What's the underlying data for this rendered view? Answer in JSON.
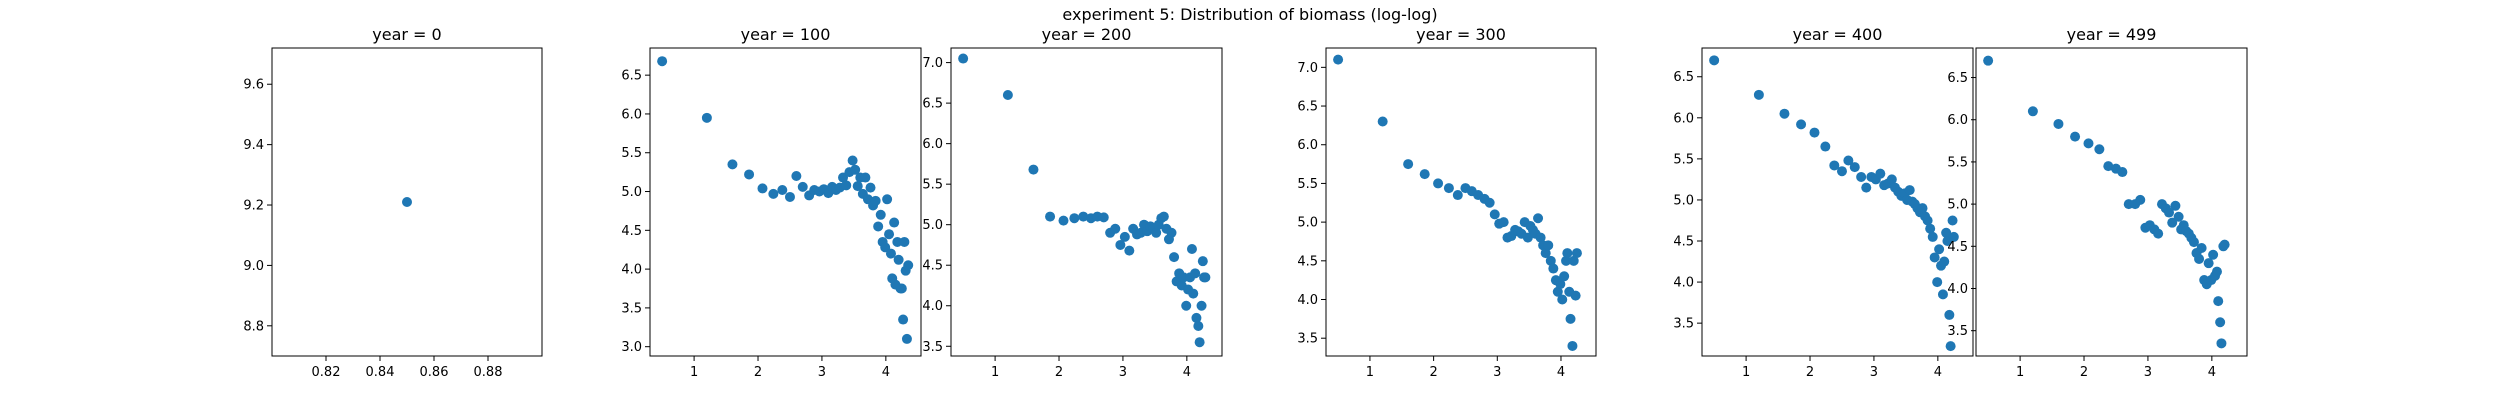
{
  "figure": {
    "title": "experiment 5: Distribution of biomass (log-log)",
    "point_color": "#1f77b4"
  },
  "chart_data": [
    {
      "type": "scatter",
      "title": "year = 0",
      "xlim": [
        0.8,
        0.9
      ],
      "ylim": [
        8.7,
        9.72
      ],
      "xticks": [
        0.82,
        0.84,
        0.86,
        0.88
      ],
      "xtick_labels": [
        "0.82",
        "0.84",
        "0.86",
        "0.88"
      ],
      "yticks": [
        8.8,
        9.0,
        9.2,
        9.4,
        9.6
      ],
      "ytick_labels": [
        "8.8",
        "9.0",
        "9.2",
        "9.4",
        "9.6"
      ],
      "points": [
        [
          0.85,
          9.21
        ]
      ]
    },
    {
      "type": "scatter",
      "title": "year = 100",
      "xlim": [
        0.31,
        4.55
      ],
      "ylim": [
        2.88,
        6.85
      ],
      "xticks": [
        1,
        2,
        3,
        4
      ],
      "xtick_labels": [
        "1",
        "2",
        "3",
        "4"
      ],
      "yticks": [
        3.0,
        3.5,
        4.0,
        4.5,
        5.0,
        5.5,
        6.0,
        6.5
      ],
      "ytick_labels": [
        "3.0",
        "3.5",
        "4.0",
        "4.5",
        "5.0",
        "5.5",
        "6.0",
        "6.5"
      ],
      "points": [
        [
          0.5,
          6.68
        ],
        [
          1.2,
          5.95
        ],
        [
          1.6,
          5.35
        ],
        [
          1.86,
          5.22
        ],
        [
          2.07,
          5.04
        ],
        [
          2.24,
          4.97
        ],
        [
          2.38,
          5.02
        ],
        [
          2.5,
          4.93
        ],
        [
          2.6,
          5.2
        ],
        [
          2.7,
          5.06
        ],
        [
          2.8,
          4.95
        ],
        [
          2.88,
          5.02
        ],
        [
          2.96,
          5.0
        ],
        [
          3.03,
          5.03
        ],
        [
          3.1,
          4.98
        ],
        [
          3.16,
          5.06
        ],
        [
          3.22,
          5.02
        ],
        [
          3.28,
          5.05
        ],
        [
          3.33,
          5.18
        ],
        [
          3.38,
          5.08
        ],
        [
          3.43,
          5.25
        ],
        [
          3.48,
          5.4
        ],
        [
          3.52,
          5.28
        ],
        [
          3.56,
          5.07
        ],
        [
          3.6,
          5.18
        ],
        [
          3.64,
          4.97
        ],
        [
          3.68,
          5.18
        ],
        [
          3.72,
          4.9
        ],
        [
          3.76,
          5.05
        ],
        [
          3.8,
          4.82
        ],
        [
          3.84,
          4.88
        ],
        [
          3.88,
          4.55
        ],
        [
          3.92,
          4.7
        ],
        [
          3.95,
          4.35
        ],
        [
          3.99,
          4.28
        ],
        [
          4.02,
          4.9
        ],
        [
          4.05,
          4.45
        ],
        [
          4.08,
          4.2
        ],
        [
          4.1,
          3.88
        ],
        [
          4.13,
          4.6
        ],
        [
          4.15,
          3.8
        ],
        [
          4.18,
          4.35
        ],
        [
          4.2,
          4.12
        ],
        [
          4.23,
          3.75
        ],
        [
          4.25,
          3.75
        ],
        [
          4.27,
          3.35
        ],
        [
          4.29,
          4.35
        ],
        [
          4.31,
          3.98
        ],
        [
          4.33,
          3.1
        ],
        [
          4.35,
          4.05
        ]
      ]
    },
    {
      "type": "scatter",
      "title": "year = 200",
      "xlim": [
        0.31,
        4.55
      ],
      "ylim": [
        3.38,
        7.18
      ],
      "xticks": [
        1,
        2,
        3,
        4
      ],
      "xtick_labels": [
        "1",
        "2",
        "3",
        "4"
      ],
      "yticks": [
        3.5,
        4.0,
        4.5,
        5.0,
        5.5,
        6.0,
        6.5,
        7.0
      ],
      "ytick_labels": [
        "3.5",
        "4.0",
        "4.5",
        "5.0",
        "5.5",
        "6.0",
        "6.5",
        "7.0"
      ],
      "points": [
        [
          0.5,
          7.05
        ],
        [
          1.2,
          6.6
        ],
        [
          1.6,
          5.68
        ],
        [
          1.86,
          5.1
        ],
        [
          2.07,
          5.05
        ],
        [
          2.24,
          5.08
        ],
        [
          2.38,
          5.1
        ],
        [
          2.5,
          5.08
        ],
        [
          2.6,
          5.1
        ],
        [
          2.7,
          5.09
        ],
        [
          2.8,
          4.9
        ],
        [
          2.88,
          4.95
        ],
        [
          2.96,
          4.75
        ],
        [
          3.03,
          4.85
        ],
        [
          3.1,
          4.68
        ],
        [
          3.16,
          4.95
        ],
        [
          3.22,
          4.88
        ],
        [
          3.28,
          4.9
        ],
        [
          3.33,
          5.0
        ],
        [
          3.38,
          4.92
        ],
        [
          3.43,
          4.98
        ],
        [
          3.48,
          4.95
        ],
        [
          3.52,
          4.9
        ],
        [
          3.56,
          5.0
        ],
        [
          3.6,
          5.08
        ],
        [
          3.64,
          5.1
        ],
        [
          3.68,
          4.95
        ],
        [
          3.72,
          4.82
        ],
        [
          3.76,
          4.9
        ],
        [
          3.8,
          4.6
        ],
        [
          3.84,
          4.3
        ],
        [
          3.88,
          4.4
        ],
        [
          3.92,
          4.25
        ],
        [
          3.95,
          4.35
        ],
        [
          3.99,
          4.0
        ],
        [
          4.02,
          4.2
        ],
        [
          4.05,
          4.35
        ],
        [
          4.08,
          4.7
        ],
        [
          4.1,
          4.15
        ],
        [
          4.13,
          4.4
        ],
        [
          4.15,
          3.85
        ],
        [
          4.18,
          3.75
        ],
        [
          4.2,
          3.55
        ],
        [
          4.23,
          4.0
        ],
        [
          4.25,
          4.55
        ],
        [
          4.27,
          4.35
        ],
        [
          4.29,
          4.35
        ]
      ]
    },
    {
      "type": "scatter",
      "title": "year = 300",
      "xlim": [
        0.31,
        4.55
      ],
      "ylim": [
        3.27,
        7.25
      ],
      "xticks": [
        1,
        2,
        3,
        4
      ],
      "xtick_labels": [
        "1",
        "2",
        "3",
        "4"
      ],
      "yticks": [
        3.5,
        4.0,
        4.5,
        5.0,
        5.5,
        6.0,
        6.5,
        7.0
      ],
      "ytick_labels": [
        "3.5",
        "4.0",
        "4.5",
        "5.0",
        "5.5",
        "6.0",
        "6.5",
        "7.0"
      ],
      "points": [
        [
          0.5,
          7.1
        ],
        [
          1.2,
          6.3
        ],
        [
          1.6,
          5.75
        ],
        [
          1.86,
          5.62
        ],
        [
          2.07,
          5.5
        ],
        [
          2.24,
          5.44
        ],
        [
          2.38,
          5.35
        ],
        [
          2.5,
          5.44
        ],
        [
          2.6,
          5.4
        ],
        [
          2.7,
          5.35
        ],
        [
          2.8,
          5.3
        ],
        [
          2.88,
          5.25
        ],
        [
          2.96,
          5.1
        ],
        [
          3.03,
          4.98
        ],
        [
          3.1,
          5.0
        ],
        [
          3.16,
          4.8
        ],
        [
          3.22,
          4.82
        ],
        [
          3.28,
          4.9
        ],
        [
          3.33,
          4.88
        ],
        [
          3.38,
          4.85
        ],
        [
          3.43,
          5.0
        ],
        [
          3.48,
          4.8
        ],
        [
          3.52,
          4.95
        ],
        [
          3.56,
          4.9
        ],
        [
          3.6,
          4.85
        ],
        [
          3.64,
          5.05
        ],
        [
          3.68,
          4.8
        ],
        [
          3.72,
          4.7
        ],
        [
          3.76,
          4.6
        ],
        [
          3.8,
          4.7
        ],
        [
          3.84,
          4.5
        ],
        [
          3.88,
          4.4
        ],
        [
          3.92,
          4.25
        ],
        [
          3.95,
          4.1
        ],
        [
          3.99,
          4.2
        ],
        [
          4.02,
          4.0
        ],
        [
          4.05,
          4.3
        ],
        [
          4.08,
          4.5
        ],
        [
          4.1,
          4.6
        ],
        [
          4.13,
          4.1
        ],
        [
          4.15,
          3.75
        ],
        [
          4.18,
          3.4
        ],
        [
          4.2,
          4.5
        ],
        [
          4.23,
          4.05
        ],
        [
          4.25,
          4.6
        ]
      ]
    },
    {
      "type": "scatter",
      "title": "year = 400",
      "xlim": [
        0.31,
        4.55
      ],
      "ylim": [
        3.1,
        6.85
      ],
      "xticks": [
        1,
        2,
        3,
        4
      ],
      "xtick_labels": [
        "1",
        "2",
        "3",
        "4"
      ],
      "yticks": [
        3.5,
        4.0,
        4.5,
        5.0,
        5.5,
        6.0,
        6.5
      ],
      "ytick_labels": [
        "3.5",
        "4.0",
        "4.5",
        "5.0",
        "5.5",
        "6.0",
        "6.5"
      ],
      "points": [
        [
          0.5,
          6.7
        ],
        [
          1.2,
          6.28
        ],
        [
          1.6,
          6.05
        ],
        [
          1.86,
          5.92
        ],
        [
          2.07,
          5.82
        ],
        [
          2.24,
          5.65
        ],
        [
          2.38,
          5.42
        ],
        [
          2.5,
          5.35
        ],
        [
          2.6,
          5.48
        ],
        [
          2.7,
          5.4
        ],
        [
          2.8,
          5.28
        ],
        [
          2.88,
          5.15
        ],
        [
          2.96,
          5.28
        ],
        [
          3.03,
          5.25
        ],
        [
          3.1,
          5.32
        ],
        [
          3.16,
          5.18
        ],
        [
          3.22,
          5.2
        ],
        [
          3.28,
          5.25
        ],
        [
          3.33,
          5.15
        ],
        [
          3.38,
          5.1
        ],
        [
          3.43,
          5.05
        ],
        [
          3.48,
          5.08
        ],
        [
          3.52,
          5.0
        ],
        [
          3.56,
          5.12
        ],
        [
          3.6,
          4.98
        ],
        [
          3.64,
          4.95
        ],
        [
          3.68,
          4.9
        ],
        [
          3.72,
          4.85
        ],
        [
          3.76,
          4.9
        ],
        [
          3.8,
          4.8
        ],
        [
          3.84,
          4.75
        ],
        [
          3.88,
          4.65
        ],
        [
          3.92,
          4.55
        ],
        [
          3.95,
          4.3
        ],
        [
          3.99,
          4.0
        ],
        [
          4.02,
          4.4
        ],
        [
          4.05,
          4.2
        ],
        [
          4.08,
          3.85
        ],
        [
          4.1,
          4.25
        ],
        [
          4.13,
          4.6
        ],
        [
          4.15,
          4.5
        ],
        [
          4.18,
          3.6
        ],
        [
          4.2,
          3.22
        ],
        [
          4.23,
          4.75
        ],
        [
          4.25,
          4.55
        ]
      ]
    },
    {
      "type": "scatter",
      "title": "year = 499",
      "xlim": [
        0.31,
        4.55
      ],
      "ylim": [
        3.2,
        6.85
      ],
      "xticks": [
        1,
        2,
        3,
        4
      ],
      "xtick_labels": [
        "1",
        "2",
        "3",
        "4"
      ],
      "yticks": [
        3.5,
        4.0,
        4.5,
        5.0,
        5.5,
        6.0,
        6.5
      ],
      "ytick_labels": [
        "3.5",
        "4.0",
        "4.5",
        "5.0",
        "5.5",
        "6.0",
        "6.5"
      ],
      "points": [
        [
          0.5,
          6.7
        ],
        [
          1.2,
          6.1
        ],
        [
          1.6,
          5.95
        ],
        [
          1.86,
          5.8
        ],
        [
          2.07,
          5.72
        ],
        [
          2.24,
          5.65
        ],
        [
          2.38,
          5.45
        ],
        [
          2.5,
          5.42
        ],
        [
          2.6,
          5.38
        ],
        [
          2.7,
          5.0
        ],
        [
          2.8,
          5.0
        ],
        [
          2.88,
          5.05
        ],
        [
          2.96,
          4.72
        ],
        [
          3.03,
          4.75
        ],
        [
          3.1,
          4.7
        ],
        [
          3.16,
          4.65
        ],
        [
          3.22,
          5.0
        ],
        [
          3.28,
          4.95
        ],
        [
          3.33,
          4.9
        ],
        [
          3.38,
          4.78
        ],
        [
          3.43,
          4.98
        ],
        [
          3.48,
          4.85
        ],
        [
          3.52,
          4.7
        ],
        [
          3.56,
          4.75
        ],
        [
          3.6,
          4.68
        ],
        [
          3.64,
          4.65
        ],
        [
          3.68,
          4.6
        ],
        [
          3.72,
          4.55
        ],
        [
          3.76,
          4.42
        ],
        [
          3.8,
          4.35
        ],
        [
          3.84,
          4.48
        ],
        [
          3.88,
          4.1
        ],
        [
          3.92,
          4.05
        ],
        [
          3.95,
          4.3
        ],
        [
          3.99,
          4.1
        ],
        [
          4.02,
          4.4
        ],
        [
          4.05,
          4.15
        ],
        [
          4.08,
          4.2
        ],
        [
          4.1,
          3.85
        ],
        [
          4.13,
          3.6
        ],
        [
          4.15,
          3.35
        ],
        [
          4.18,
          4.5
        ],
        [
          4.2,
          4.52
        ]
      ]
    }
  ]
}
